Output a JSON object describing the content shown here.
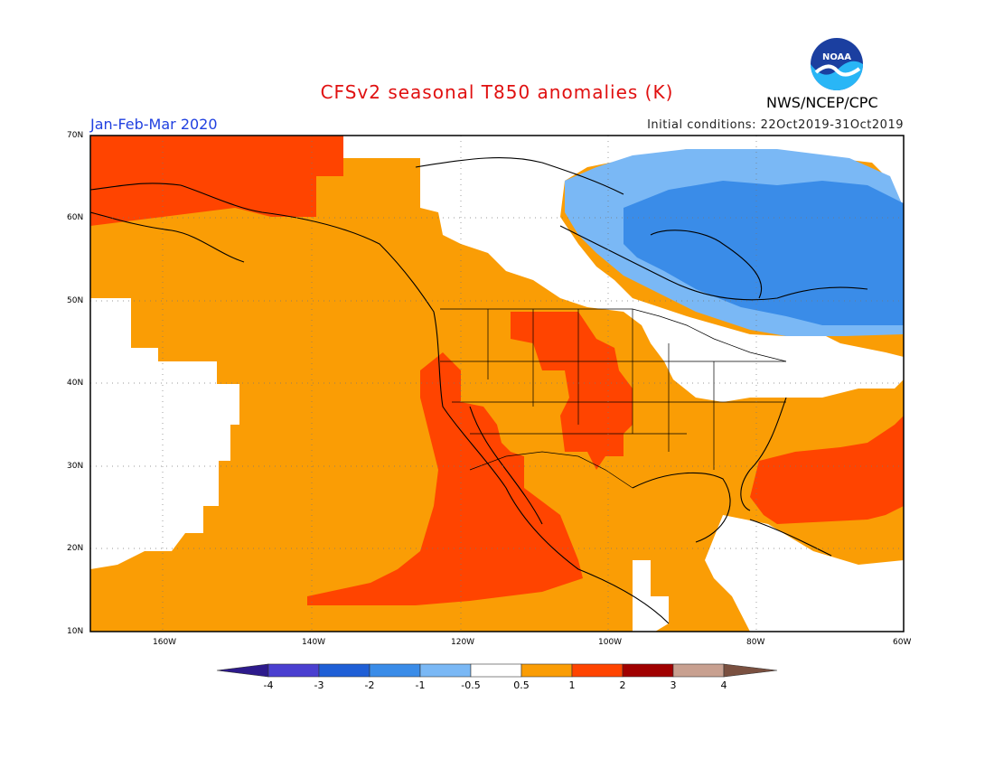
{
  "header": {
    "title": "CFSv2 seasonal T850 anomalies (K)",
    "period": "Jan-Feb-Mar 2020",
    "initial_conditions": "Initial conditions: 22Oct2019-31Oct2019",
    "agency": "NWS/NCEP/CPC",
    "logo_text": "NOAA"
  },
  "axes": {
    "lat_labels": [
      "70N",
      "60N",
      "50N",
      "40N",
      "30N",
      "20N",
      "10N"
    ],
    "lon_labels": [
      "160W",
      "140W",
      "120W",
      "100W",
      "80W",
      "60W"
    ]
  },
  "colorbar": {
    "labels": [
      "-4",
      "-3",
      "-2",
      "-1",
      "-0.5",
      "0.5",
      "1",
      "2",
      "3",
      "4"
    ],
    "colors": [
      "#2d1a8c",
      "#4a3fd0",
      "#1f5fd6",
      "#3a8ce8",
      "#7ab8f5",
      "#ffffff",
      "#fa9d05",
      "#ff4400",
      "#a00000",
      "#c8a090",
      "#7a5040"
    ]
  },
  "colors": {
    "anom_1": "#fa9d05",
    "anom_2": "#ff4400",
    "anom_m1": "#3a8ce8",
    "anom_m05": "#7ab8f5",
    "neutral": "#ffffff",
    "title": "#e01010",
    "period": "#2040e0"
  }
}
